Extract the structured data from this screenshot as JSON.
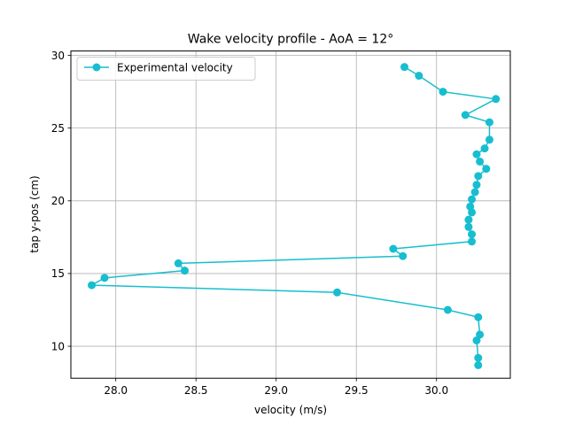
{
  "chart_data": {
    "type": "line",
    "title": "Wake velocity profile - AoA = 12°",
    "xlabel": "velocity (m/s)",
    "ylabel": "tap y-pos (cm)",
    "xlim": [
      27.72,
      30.46
    ],
    "ylim": [
      7.8,
      30.3
    ],
    "xticks": [
      28.0,
      28.5,
      29.0,
      29.5,
      30.0
    ],
    "yticks": [
      10,
      15,
      20,
      25,
      30
    ],
    "grid": true,
    "legend": "top-left",
    "series": [
      {
        "name": "Experimental velocity",
        "color": "#17becf",
        "marker": "circle",
        "points": [
          {
            "x": 29.8,
            "y": 29.2
          },
          {
            "x": 29.89,
            "y": 28.6
          },
          {
            "x": 30.04,
            "y": 27.5
          },
          {
            "x": 30.37,
            "y": 27.0
          },
          {
            "x": 30.18,
            "y": 25.9
          },
          {
            "x": 30.33,
            "y": 25.4
          },
          {
            "x": 30.33,
            "y": 24.2
          },
          {
            "x": 30.3,
            "y": 23.6
          },
          {
            "x": 30.25,
            "y": 23.2
          },
          {
            "x": 30.27,
            "y": 22.7
          },
          {
            "x": 30.31,
            "y": 22.2
          },
          {
            "x": 30.26,
            "y": 21.7
          },
          {
            "x": 30.25,
            "y": 21.1
          },
          {
            "x": 30.24,
            "y": 20.6
          },
          {
            "x": 30.22,
            "y": 20.1
          },
          {
            "x": 30.21,
            "y": 19.6
          },
          {
            "x": 30.22,
            "y": 19.2
          },
          {
            "x": 30.2,
            "y": 18.7
          },
          {
            "x": 30.2,
            "y": 18.2
          },
          {
            "x": 30.22,
            "y": 17.7
          },
          {
            "x": 30.22,
            "y": 17.2
          },
          {
            "x": 29.73,
            "y": 16.7
          },
          {
            "x": 29.79,
            "y": 16.2
          },
          {
            "x": 28.39,
            "y": 15.7
          },
          {
            "x": 28.43,
            "y": 15.2
          },
          {
            "x": 27.93,
            "y": 14.7
          },
          {
            "x": 27.85,
            "y": 14.2
          },
          {
            "x": 29.38,
            "y": 13.7
          },
          {
            "x": 30.07,
            "y": 12.5
          },
          {
            "x": 30.26,
            "y": 12.0
          },
          {
            "x": 30.27,
            "y": 10.8
          },
          {
            "x": 30.25,
            "y": 10.4
          },
          {
            "x": 30.26,
            "y": 9.2
          },
          {
            "x": 30.26,
            "y": 8.7
          }
        ]
      }
    ]
  }
}
